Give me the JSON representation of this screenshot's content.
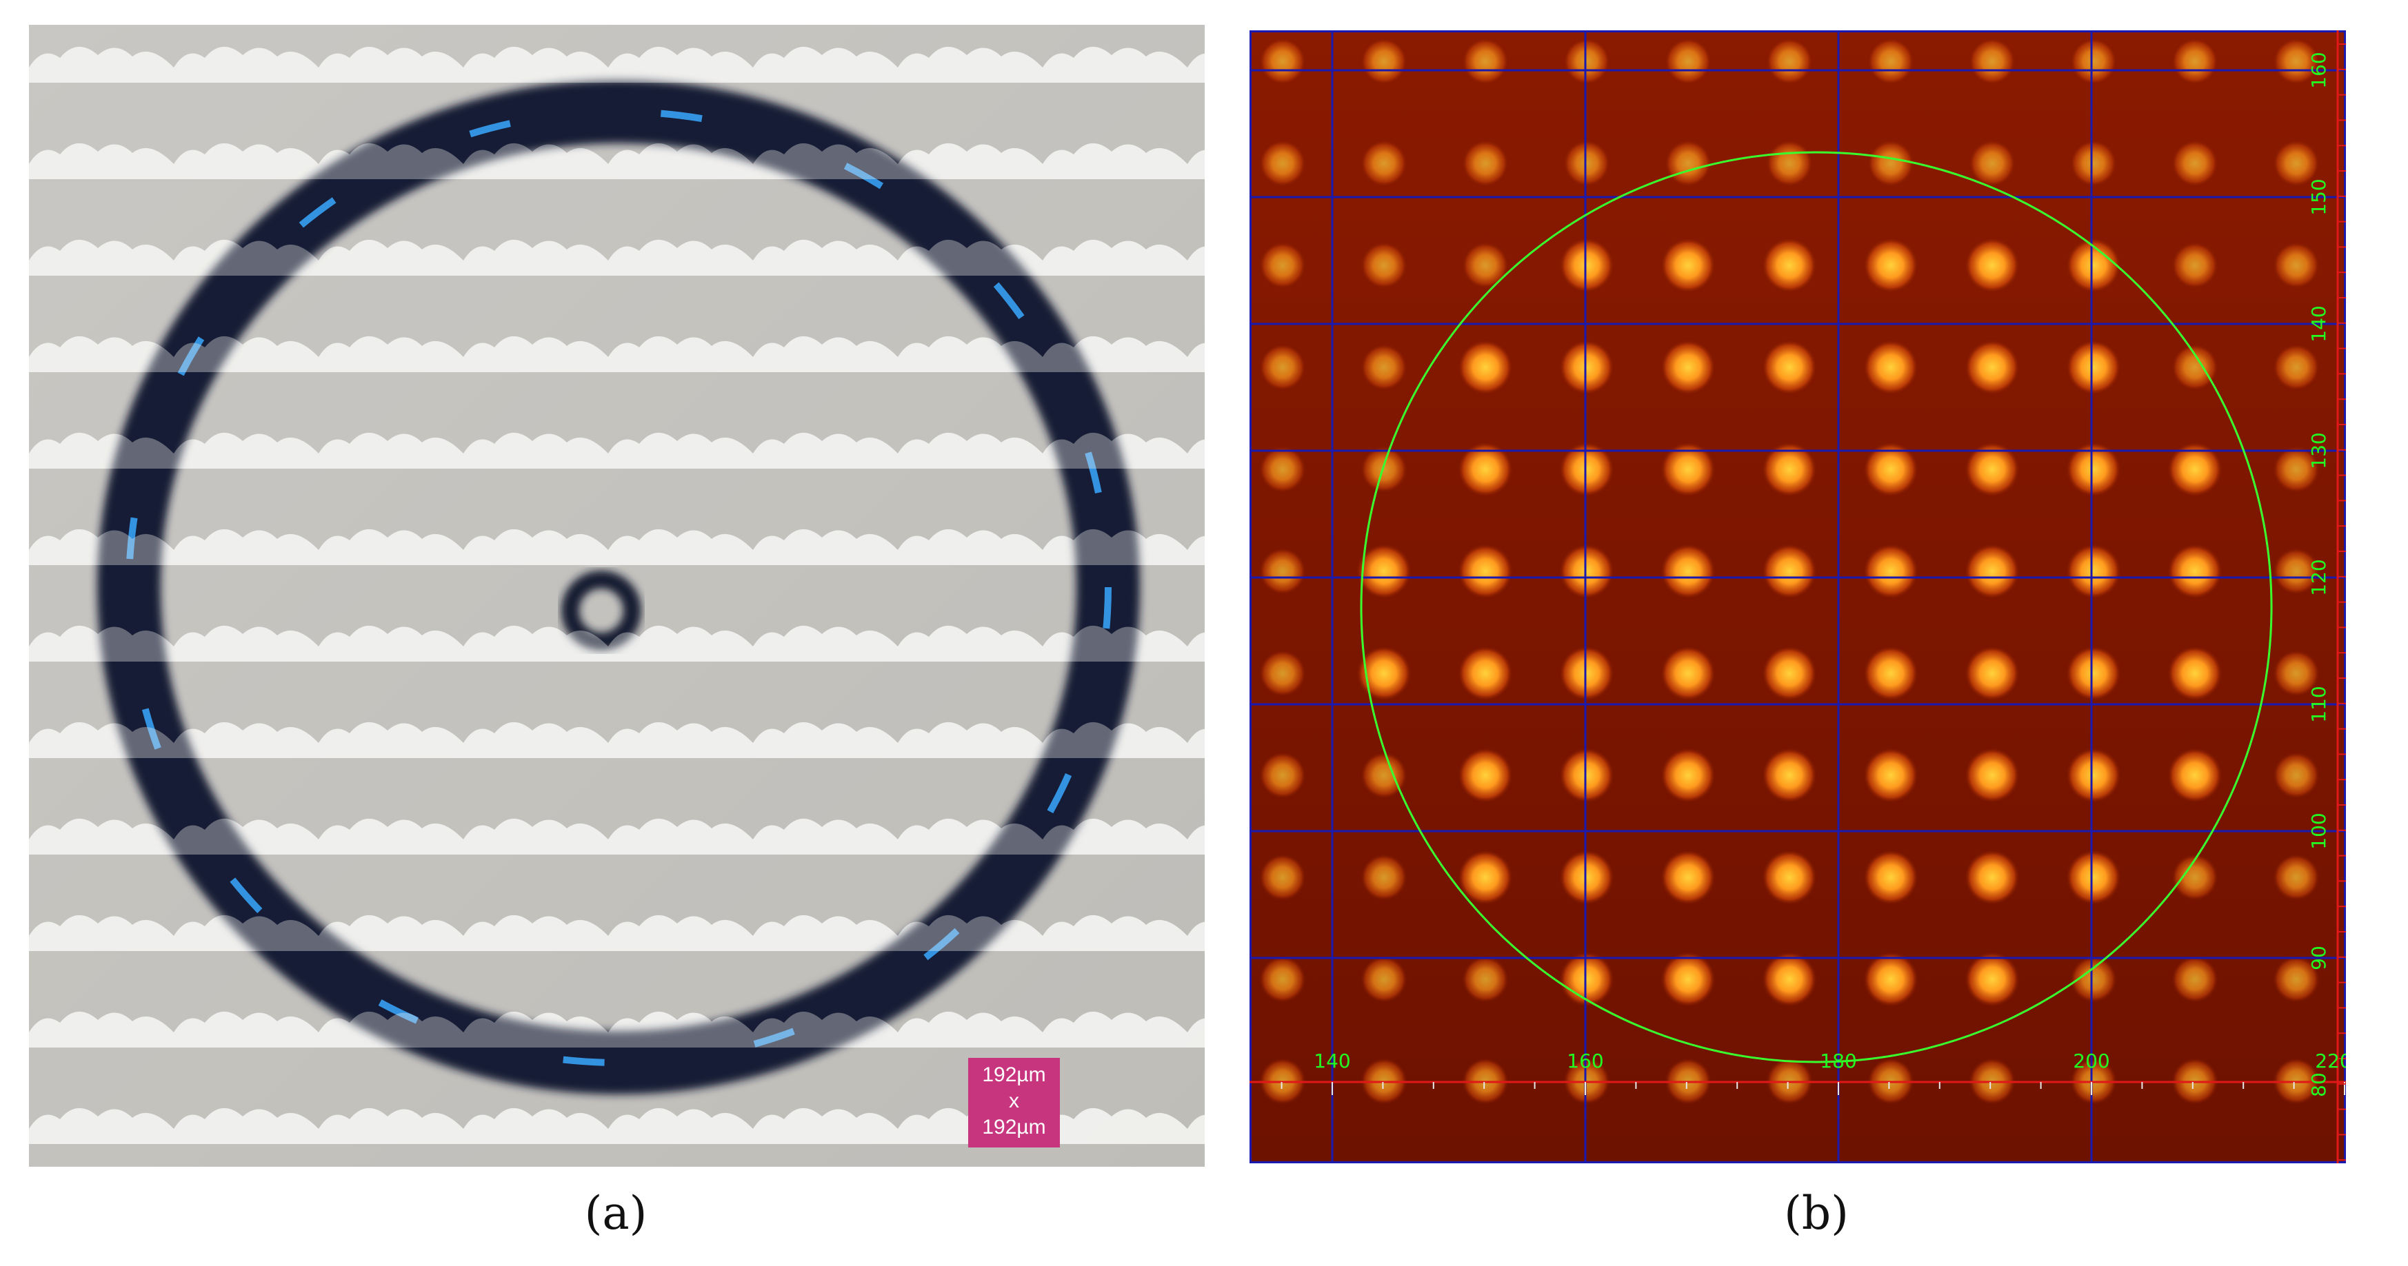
{
  "figure": {
    "panel_a": {
      "label": "(a)",
      "scale_badge": {
        "line1": "192µm",
        "line2": "x",
        "line3": "192µm"
      },
      "colors": {
        "background": "#c8c6c2",
        "ring": "#121a34",
        "ring_highlight": "#3aa8ff",
        "badge": "#c8357f"
      }
    },
    "panel_b": {
      "label": "(b)",
      "x_tick_labels": [
        "140",
        "160",
        "180",
        "200",
        "220"
      ],
      "y_tick_labels": [
        "160",
        "150",
        "140",
        "130",
        "120",
        "110",
        "100",
        "90",
        "80"
      ],
      "colors": {
        "background": "#7e1600",
        "spot": "#ffa226",
        "grid": "#1a1ab0",
        "circle": "#39ff2e",
        "tick_text": "#22ff22",
        "marker": "#e01818"
      }
    }
  }
}
